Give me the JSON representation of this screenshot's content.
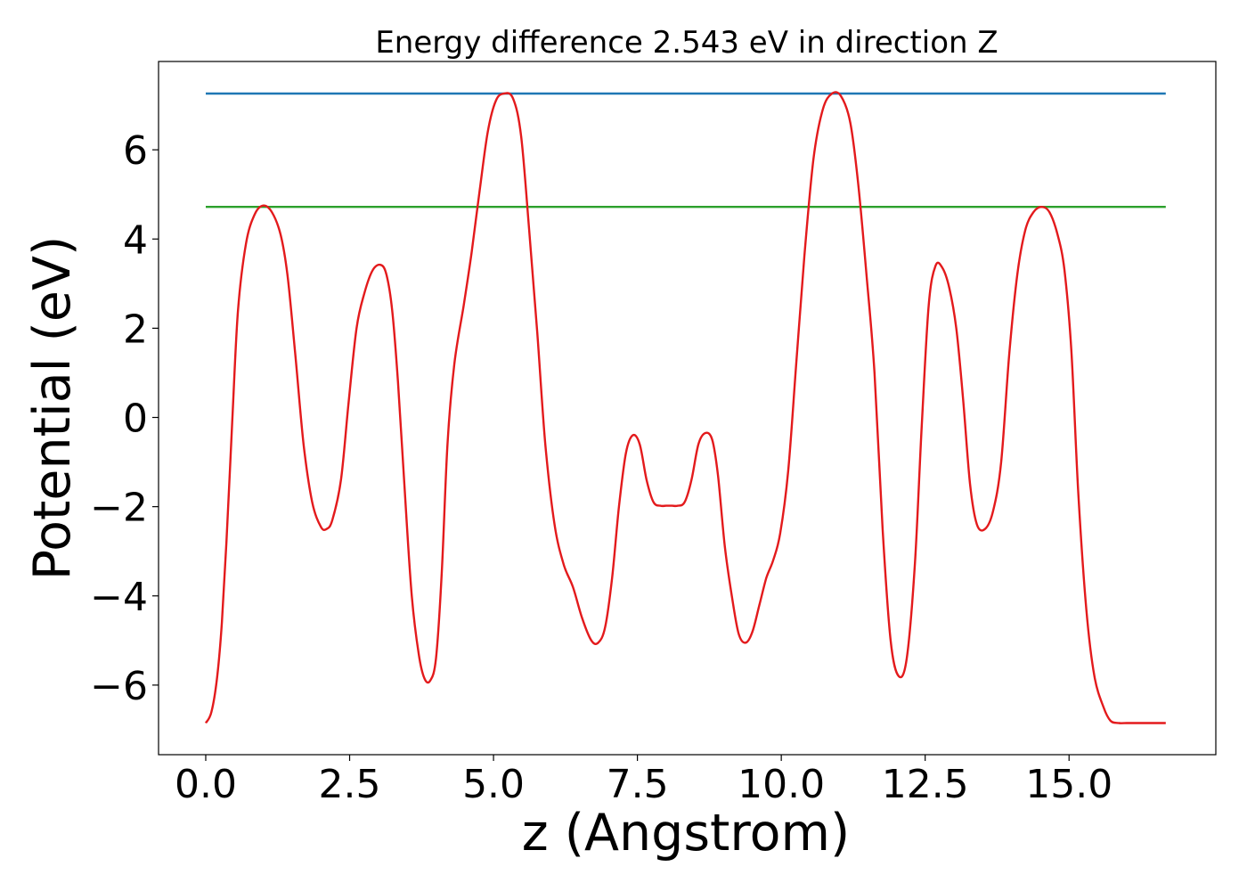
{
  "chart_data": {
    "type": "line",
    "title": "Energy difference 2.543 eV in direction Z",
    "xlabel": "z (Angstrom)",
    "ylabel": "Potential (eV)",
    "xlim": [
      -0.82,
      17.55
    ],
    "ylim": [
      -7.56,
      7.98
    ],
    "x_ticks": [
      0.0,
      2.5,
      5.0,
      7.5,
      10.0,
      12.5,
      15.0
    ],
    "x_tick_labels": [
      "0.0",
      "2.5",
      "5.0",
      "7.5",
      "10.0",
      "12.5",
      "15.0"
    ],
    "y_ticks": [
      -6,
      -4,
      -2,
      0,
      2,
      4,
      6
    ],
    "y_tick_labels": [
      "−6",
      "−4",
      "−2",
      "0",
      "2",
      "4",
      "6"
    ],
    "grid": false,
    "series": [
      {
        "color": "#1f77b4",
        "x": [
          0.0,
          16.68
        ],
        "y": [
          7.26,
          7.26
        ]
      },
      {
        "color": "#2ca02c",
        "x": [
          0.0,
          16.68
        ],
        "y": [
          4.72,
          4.72
        ]
      },
      {
        "color": "#e31a1c",
        "x": [
          0.0,
          0.1,
          0.2,
          0.28,
          0.36,
          0.46,
          0.56,
          0.7,
          0.85,
          1.0,
          1.15,
          1.3,
          1.42,
          1.55,
          1.7,
          1.85,
          2.0,
          2.1,
          2.2,
          2.35,
          2.48,
          2.62,
          2.76,
          2.9,
          3.04,
          3.14,
          3.24,
          3.34,
          3.46,
          3.58,
          3.7,
          3.8,
          3.9,
          4.0,
          4.1,
          4.2,
          4.32,
          4.48,
          4.62,
          4.76,
          4.9,
          5.04,
          5.18,
          5.34,
          5.48,
          5.62,
          5.76,
          5.9,
          6.06,
          6.22,
          6.38,
          6.54,
          6.7,
          6.82,
          6.94,
          7.06,
          7.18,
          7.3,
          7.42,
          7.54,
          7.66,
          7.78,
          7.9,
          8.0,
          8.1,
          8.2,
          8.32,
          8.44,
          8.56,
          8.68,
          8.8,
          8.9,
          9.02,
          9.14,
          9.26,
          9.38,
          9.5,
          9.62,
          9.74,
          9.86,
          9.98,
          10.12,
          10.26,
          10.4,
          10.56,
          10.72,
          10.88,
          11.04,
          11.2,
          11.34,
          11.48,
          11.62,
          11.76,
          11.9,
          12.04,
          12.18,
          12.32,
          12.44,
          12.56,
          12.68,
          12.8,
          12.92,
          13.04,
          13.16,
          13.28,
          13.4,
          13.54,
          13.68,
          13.82,
          13.96,
          14.1,
          14.24,
          14.38,
          14.52,
          14.66,
          14.8,
          14.92,
          15.04,
          15.16,
          15.3,
          15.44,
          15.6,
          15.72,
          15.86,
          16.0,
          16.12,
          16.24,
          16.36,
          16.48,
          16.58,
          16.68
        ],
        "y": [
          -6.85,
          -6.6,
          -5.8,
          -4.6,
          -2.8,
          -0.1,
          2.4,
          3.9,
          4.55,
          4.75,
          4.6,
          4.1,
          3.2,
          1.5,
          -0.6,
          -1.9,
          -2.45,
          -2.5,
          -2.3,
          -1.4,
          0.3,
          2.0,
          2.8,
          3.3,
          3.42,
          3.2,
          2.4,
          0.8,
          -1.7,
          -4.0,
          -5.3,
          -5.85,
          -5.9,
          -5.4,
          -3.5,
          -0.6,
          1.2,
          2.5,
          3.7,
          5.1,
          6.4,
          7.1,
          7.26,
          7.15,
          6.3,
          4.2,
          1.9,
          -0.6,
          -2.4,
          -3.3,
          -3.8,
          -4.5,
          -5.0,
          -5.05,
          -4.7,
          -3.6,
          -2.0,
          -0.8,
          -0.4,
          -0.6,
          -1.4,
          -1.9,
          -1.98,
          -1.98,
          -1.98,
          -1.98,
          -1.9,
          -1.4,
          -0.6,
          -0.35,
          -0.5,
          -1.3,
          -2.9,
          -4.0,
          -4.85,
          -5.05,
          -4.8,
          -4.2,
          -3.6,
          -3.2,
          -2.6,
          -1.2,
          1.2,
          3.6,
          5.8,
          6.9,
          7.26,
          7.2,
          6.6,
          5.2,
          3.2,
          1.0,
          -2.5,
          -5.0,
          -5.8,
          -5.4,
          -3.3,
          -0.2,
          2.5,
          3.4,
          3.35,
          2.9,
          2.0,
          0.4,
          -1.5,
          -2.4,
          -2.5,
          -2.1,
          -1.0,
          1.4,
          3.2,
          4.2,
          4.6,
          4.72,
          4.6,
          4.1,
          3.3,
          1.5,
          -1.7,
          -4.3,
          -5.8,
          -6.5,
          -6.8,
          -6.85,
          -6.85,
          -6.85,
          -6.85,
          -6.85,
          -6.85,
          -6.85,
          -6.85
        ]
      }
    ]
  }
}
